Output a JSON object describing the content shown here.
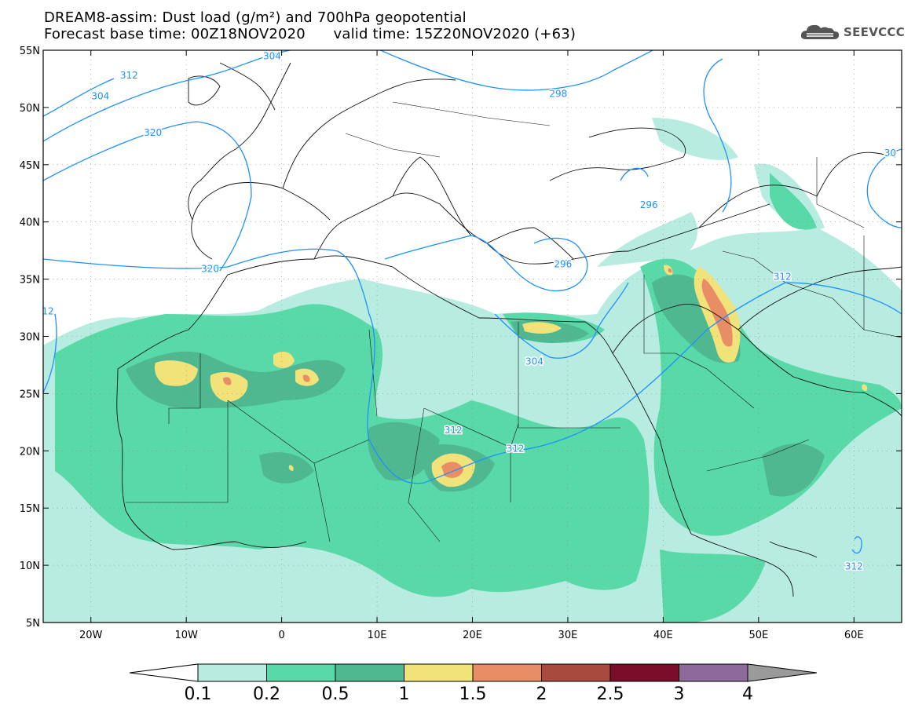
{
  "title": {
    "line1": "DREAM8-assim: Dust load (g/m²) and 700hPa geopotential",
    "line2_left": "Forecast base time: 00Z18NOV2020",
    "line2_right": "valid time: 15Z20NOV2020 (+63)"
  },
  "logo": {
    "text": "SEEVCCC",
    "icon": "cloud-icon"
  },
  "map": {
    "lon_range": [
      -25,
      65
    ],
    "lat_range": [
      5,
      55
    ],
    "x_ticks": [
      "20W",
      "10W",
      "0",
      "10E",
      "20E",
      "30E",
      "40E",
      "50E",
      "60E"
    ],
    "x_tick_values": [
      -20,
      -10,
      0,
      10,
      20,
      30,
      40,
      50,
      60
    ],
    "y_ticks": [
      "55N",
      "50N",
      "45N",
      "40N",
      "35N",
      "30N",
      "25N",
      "20N",
      "15N",
      "10N",
      "5N"
    ],
    "y_tick_values": [
      55,
      50,
      45,
      40,
      35,
      30,
      25,
      20,
      15,
      10,
      5
    ],
    "grid": true,
    "contour_color": "#1e90ff",
    "contour_labels": [
      {
        "text": "304",
        "lon": -19,
        "lat": 51
      },
      {
        "text": "312",
        "lon": -16,
        "lat": 52.8
      },
      {
        "text": "304",
        "lon": -1,
        "lat": 54.5
      },
      {
        "text": "320",
        "lon": -13.5,
        "lat": 47.8
      },
      {
        "text": "298",
        "lon": 29,
        "lat": 51.2
      },
      {
        "text": "296",
        "lon": 38.5,
        "lat": 41.5
      },
      {
        "text": "30",
        "lon": 63.8,
        "lat": 46
      },
      {
        "text": "320",
        "lon": -7.5,
        "lat": 35.9
      },
      {
        "text": "296",
        "lon": 29.5,
        "lat": 36.3
      },
      {
        "text": "312",
        "lon": 52.5,
        "lat": 35.2
      },
      {
        "text": "12",
        "lon": -24.5,
        "lat": 32.2
      },
      {
        "text": "304",
        "lon": 26.5,
        "lat": 27.8
      },
      {
        "text": "312",
        "lon": 18,
        "lat": 21.8
      },
      {
        "text": "312",
        "lon": 24.5,
        "lat": 20.2
      },
      {
        "text": "312",
        "lon": 60,
        "lat": 9.9
      }
    ]
  },
  "colorbar": {
    "labels": [
      "0.1",
      "0.2",
      "0.5",
      "1",
      "1.5",
      "2",
      "2.5",
      "3",
      "4"
    ],
    "colors": [
      "#b8ece0",
      "#5ad9a8",
      "#4fb890",
      "#f2e27a",
      "#e98d66",
      "#a84a3e",
      "#7a0e2a",
      "#8e6a9c"
    ],
    "under_color": "#ffffff",
    "over_color": "#9a9a9a"
  },
  "dust_fill_colors": {
    "level1": "#b8ece0",
    "level2": "#5ad9a8",
    "level3": "#4fb890",
    "level4": "#f2e27a",
    "level5": "#e98d66"
  }
}
